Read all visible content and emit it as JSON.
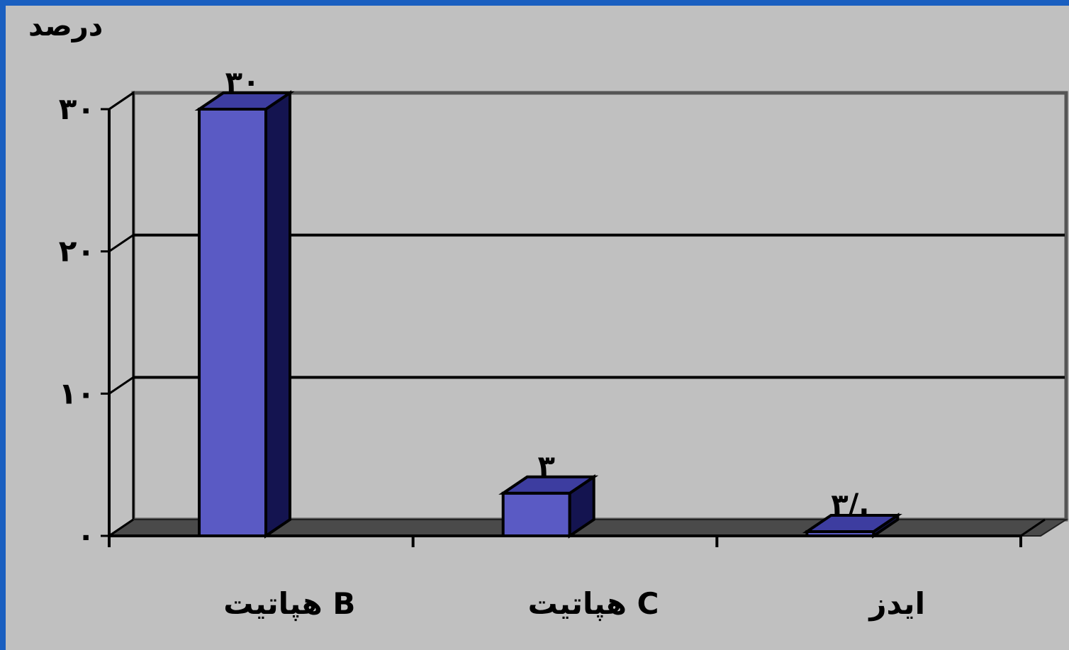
{
  "chart_data": {
    "type": "bar",
    "style": "3d-column",
    "categories": [
      "هپاتیت B",
      "هپاتیت C",
      "ایدز"
    ],
    "values": [
      30,
      3,
      0.3
    ],
    "data_labels": [
      "۳۰",
      "۳",
      "۳/."
    ],
    "ylabel": "درصد",
    "xlabel": "",
    "ylim": [
      0,
      30
    ],
    "yticks": [
      0,
      10,
      20,
      30
    ],
    "ytick_labels": [
      "۰",
      "۱۰",
      "۲۰",
      "۳۰"
    ],
    "grid": true,
    "legend": "none",
    "colors": {
      "bar_front": "#5a5ac4",
      "bar_side": "#141450",
      "bar_top": "#3d3da0",
      "floor": "#4a4a4a",
      "plot_bg": "#c0c0c0",
      "frame": "#1a5fc0"
    }
  }
}
